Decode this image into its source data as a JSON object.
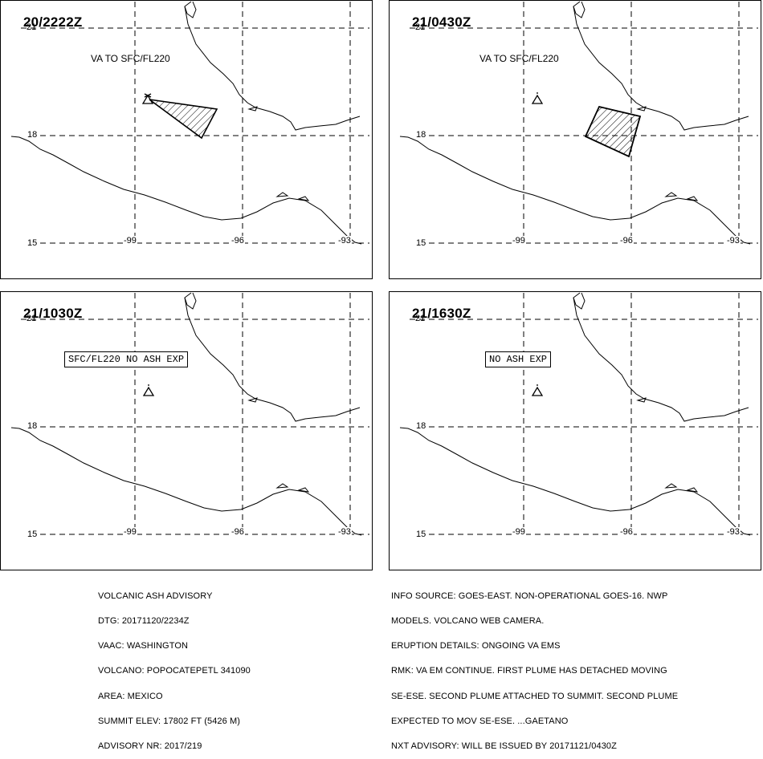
{
  "panels": [
    {
      "time": "20/2222Z",
      "label": "VA TO SFC/FL220",
      "label_style": "plain",
      "plume": "plume-a"
    },
    {
      "time": "21/0430Z",
      "label": "VA TO SFC/FL220",
      "label_style": "plain",
      "plume": "plume-b"
    },
    {
      "time": "21/1030Z",
      "label": "SFC/FL220 NO ASH EXP",
      "label_style": "boxed",
      "plume": "none"
    },
    {
      "time": "21/1630Z",
      "label": "NO ASH EXP",
      "label_style": "boxed",
      "plume": "none"
    }
  ],
  "grid": {
    "lat_labels": [
      "21",
      "18",
      "15"
    ],
    "lon_labels": [
      "-99",
      "-96",
      "-93"
    ]
  },
  "advisory_left": [
    "VOLCANIC ASH ADVISORY",
    "DTG: 20171120/2234Z",
    "VAAC: WASHINGTON",
    "VOLCANO: POPOCATEPETL 341090",
    "AREA: MEXICO",
    "SUMMIT ELEV: 17802 FT (5426 M)",
    "ADVISORY NR: 2017/219"
  ],
  "advisory_right": [
    "INFO SOURCE: GOES-EAST. NON-OPERATIONAL GOES-16. NWP",
    "MODELS. VOLCANO WEB CAMERA.",
    "ERUPTION DETAILS: ONGOING VA EMS",
    "RMK: VA EM CONTINUE. FIRST PLUME HAS DETACHED MOVING",
    "SE-ESE. SECOND PLUME ATTACHED TO SUMMIT. SECOND PLUME",
    "EXPECTED TO MOV SE-ESE. ...GAETANO",
    "NXT ADVISORY: WILL BE ISSUED BY 20171121/0430Z"
  ],
  "colors": {
    "ink": "#000000",
    "background": "#ffffff"
  }
}
